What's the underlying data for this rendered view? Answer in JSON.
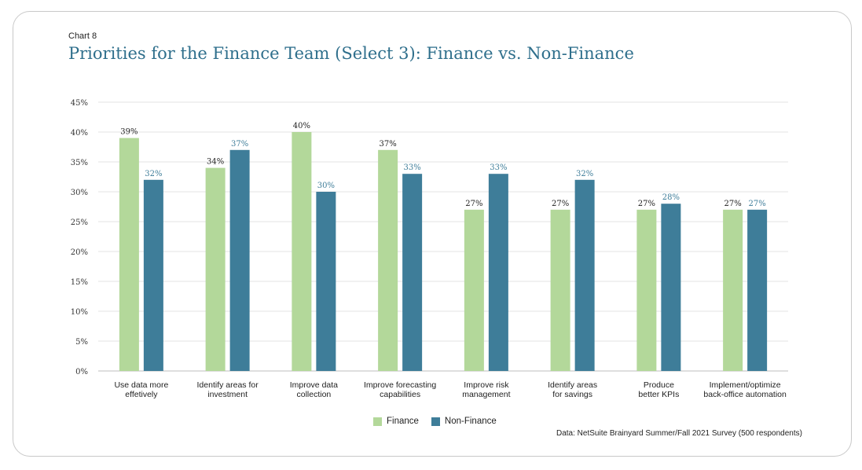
{
  "header": {
    "kicker": "Chart 8",
    "title": "Priorities for the Finance Team (Select 3): Finance vs. Non-Finance"
  },
  "source": "Data: NetSuite Brainyard Summer/Fall 2021 Survey (500 respondents)",
  "colors": {
    "finance": "#b3d89a",
    "non_finance": "#3e7d99",
    "grid": "#e3e3e3",
    "title": "#2f6f8c"
  },
  "chart_data": {
    "type": "bar",
    "categories": [
      [
        "Use data more",
        "effetively"
      ],
      [
        "Identify areas for",
        "investment"
      ],
      [
        "Improve data",
        "collection"
      ],
      [
        "Improve forecasting",
        "capabilities"
      ],
      [
        "Improve risk",
        "management"
      ],
      [
        "Identify areas",
        "for savings"
      ],
      [
        "Produce",
        "better KPIs"
      ],
      [
        "Implement/optimize",
        "back-office automation"
      ]
    ],
    "series": [
      {
        "name": "Finance",
        "values": [
          39,
          34,
          40,
          37,
          27,
          27,
          27,
          27
        ]
      },
      {
        "name": "Non-Finance",
        "values": [
          32,
          37,
          30,
          33,
          33,
          32,
          28,
          27
        ]
      }
    ],
    "ylim": [
      0,
      45
    ],
    "yticks": [
      "0%",
      "5%",
      "10%",
      "15%",
      "20%",
      "25%",
      "30%",
      "35%",
      "40%",
      "45%"
    ],
    "value_suffix": "%",
    "grid": true,
    "legend": "bottom-center"
  }
}
